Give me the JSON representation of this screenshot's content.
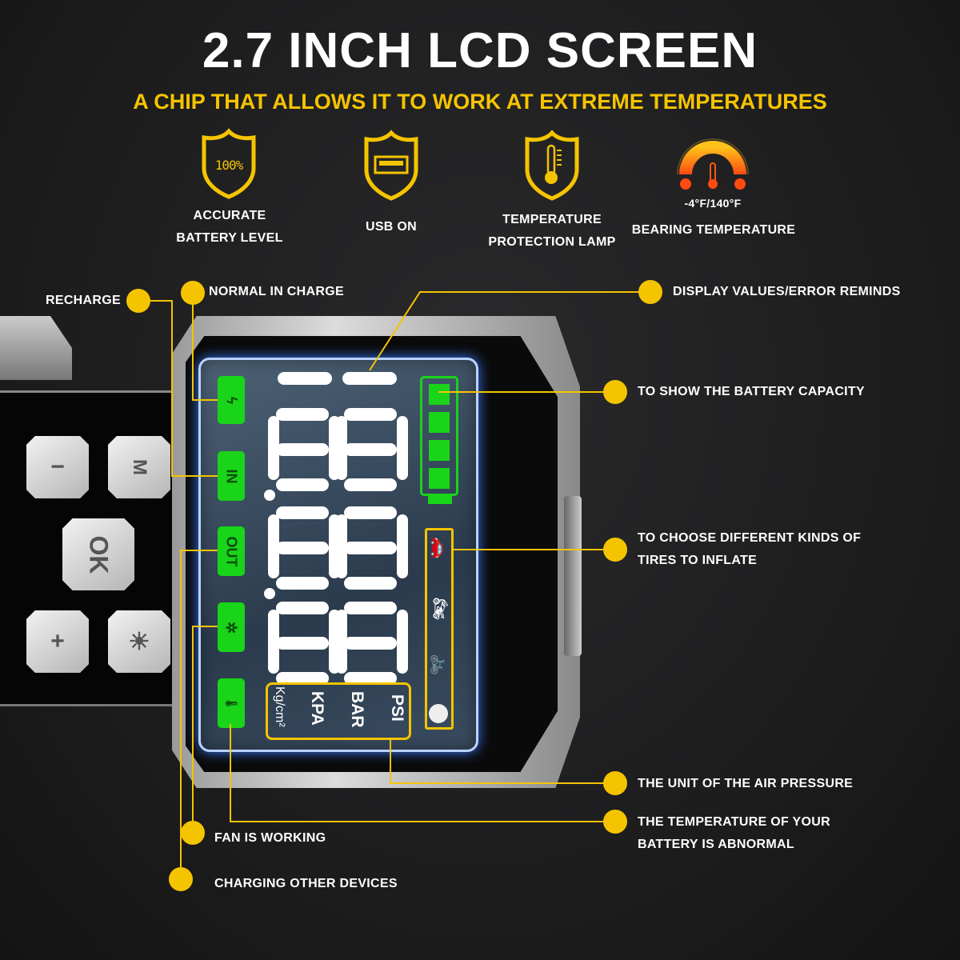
{
  "title": "2.7 INCH LCD SCREEN",
  "subtitle": "A CHIP THAT ALLOWS IT TO WORK AT EXTREME TEMPERATURES",
  "features": [
    {
      "icon": "battery-percent-shield-icon",
      "icon_text": "100%",
      "label_1": "ACCURATE",
      "label_2": "BATTERY LEVEL"
    },
    {
      "icon": "usb-shield-icon",
      "label_1": "USB ON"
    },
    {
      "icon": "thermometer-shield-icon",
      "label_1": "TEMPERATURE",
      "label_2": "PROTECTION LAMP"
    },
    {
      "icon": "temperature-gauge-icon",
      "range": "-4°F/140°F",
      "label_1": "BEARING TEMPERATURE"
    }
  ],
  "buttons": {
    "minus": "−",
    "mode": "M",
    "ok": "OK",
    "plus": "+",
    "light": "☀"
  },
  "lcd": {
    "tags": [
      "ϟ",
      "IN",
      "OUT",
      "✲",
      "🌡"
    ],
    "units": [
      "PSI",
      "BAR",
      "KPA",
      "Kg/cm²"
    ],
    "battery_bars": 4,
    "vehicles": [
      "car-icon",
      "motorcycle-icon",
      "bicycle-icon",
      "ball-icon"
    ]
  },
  "callouts": {
    "recharge": "RECHARGE",
    "normal_in_charge": "NORMAL IN CHARGE",
    "display_values": "DISPLAY VALUES/ERROR REMINDS",
    "battery_capacity": "TO SHOW THE BATTERY CAPACITY",
    "tires_1": "TO CHOOSE DIFFERENT KINDS OF",
    "tires_2": "TIRES TO INFLATE",
    "air_pressure": "THE UNIT OF THE AIR PRESSURE",
    "battery_temp_1": "THE TEMPERATURE OF YOUR",
    "battery_temp_2": "BATTERY IS ABNORMAL",
    "fan": "FAN IS WORKING",
    "charging_other": "CHARGING OTHER DEVICES"
  },
  "colors": {
    "accent": "#f5c400",
    "lcd_green": "#19d419",
    "lcd_glow": "#3a7bff"
  }
}
